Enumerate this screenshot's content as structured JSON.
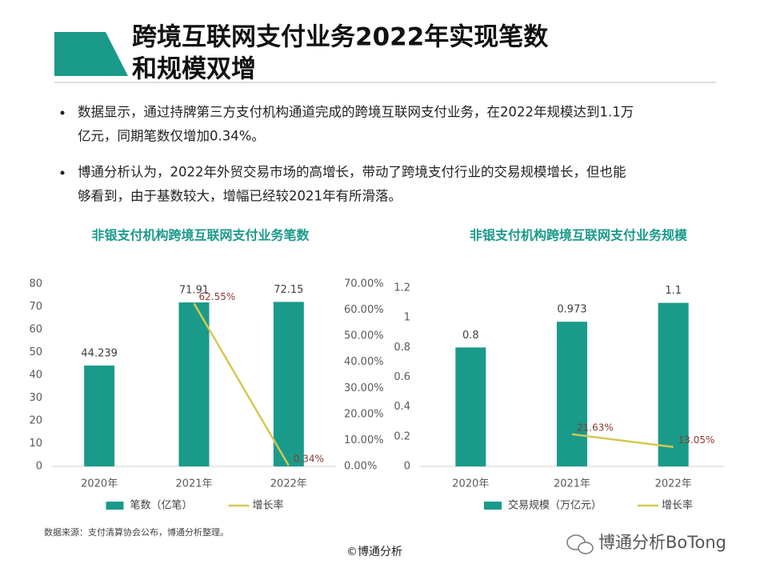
{
  "header": {
    "title_lines": [
      "跨境互联网支付业务2022年实现笔数",
      "和规模双增"
    ]
  },
  "bullets": [
    [
      "数据显示，通过持牌第三方支付机构通道完成的跨境互联网支付业务，在2022年规模达到1.1万",
      "亿元，同期笔数仅增加0.34%。"
    ],
    [
      "博通分析认为，2022年外贸交易市场的高增长，带动了跨境支付行业的交易规模增长，但也能",
      "够看到，由于基数较大，增幅已经较2021年有所滑落。"
    ]
  ],
  "chart_data": [
    {
      "type": "bar",
      "title": "非银支付机构跨境互联网支付业务笔数",
      "categories": [
        "2020年",
        "2021年",
        "2022年"
      ],
      "series": [
        {
          "name": "笔数（亿笔）",
          "type": "bar",
          "color": "#1a9a8a",
          "values": [
            44.239,
            71.91,
            72.15
          ]
        },
        {
          "name": "增长率",
          "type": "line",
          "axis": "y2",
          "color": "#d6c750",
          "values": [
            null,
            62.55,
            0.34
          ],
          "value_labels": [
            null,
            "62.55%",
            "0.34%"
          ]
        }
      ],
      "ylim": [
        0,
        80
      ],
      "yticks": [
        0,
        10,
        20,
        30,
        40,
        50,
        60,
        70,
        80
      ],
      "y2lim": [
        0,
        70
      ],
      "y2ticks": [
        {
          "value": 0,
          "label": "0.00%"
        },
        {
          "value": 10,
          "label": "10.00%"
        },
        {
          "value": 20,
          "label": "20.00%"
        },
        {
          "value": 30,
          "label": "30.00%"
        },
        {
          "value": 40,
          "label": "40.00%"
        },
        {
          "value": 50,
          "label": "50.00%"
        },
        {
          "value": 60,
          "label": "60.00%"
        },
        {
          "value": 70,
          "label": "70.00%"
        }
      ],
      "legend": "bottom"
    },
    {
      "type": "bar",
      "title": "非银支付机构跨境互联网支付业务规模",
      "categories": [
        "2020年",
        "2021年",
        "2022年"
      ],
      "series": [
        {
          "name": "交易规模（万亿元）",
          "type": "bar",
          "color": "#1a9a8a",
          "values": [
            0.8,
            0.973,
            1.1
          ]
        },
        {
          "name": "增长率",
          "type": "line",
          "axis": "y2",
          "color": "#d6c750",
          "values": [
            null,
            21.63,
            13.05
          ],
          "value_labels": [
            null,
            "21.63%",
            "13.05%"
          ]
        }
      ],
      "ylim": [
        0,
        1.2
      ],
      "yticks": [
        0,
        0.2,
        0.4,
        0.6,
        0.8,
        1,
        1.2
      ],
      "y2lim": [
        0,
        120
      ],
      "legend": "bottom"
    }
  ],
  "source": "数据来源：支付清算协会公布，博通分析整理。",
  "footer": "©博通分析",
  "brand": "博通分析BoTong"
}
